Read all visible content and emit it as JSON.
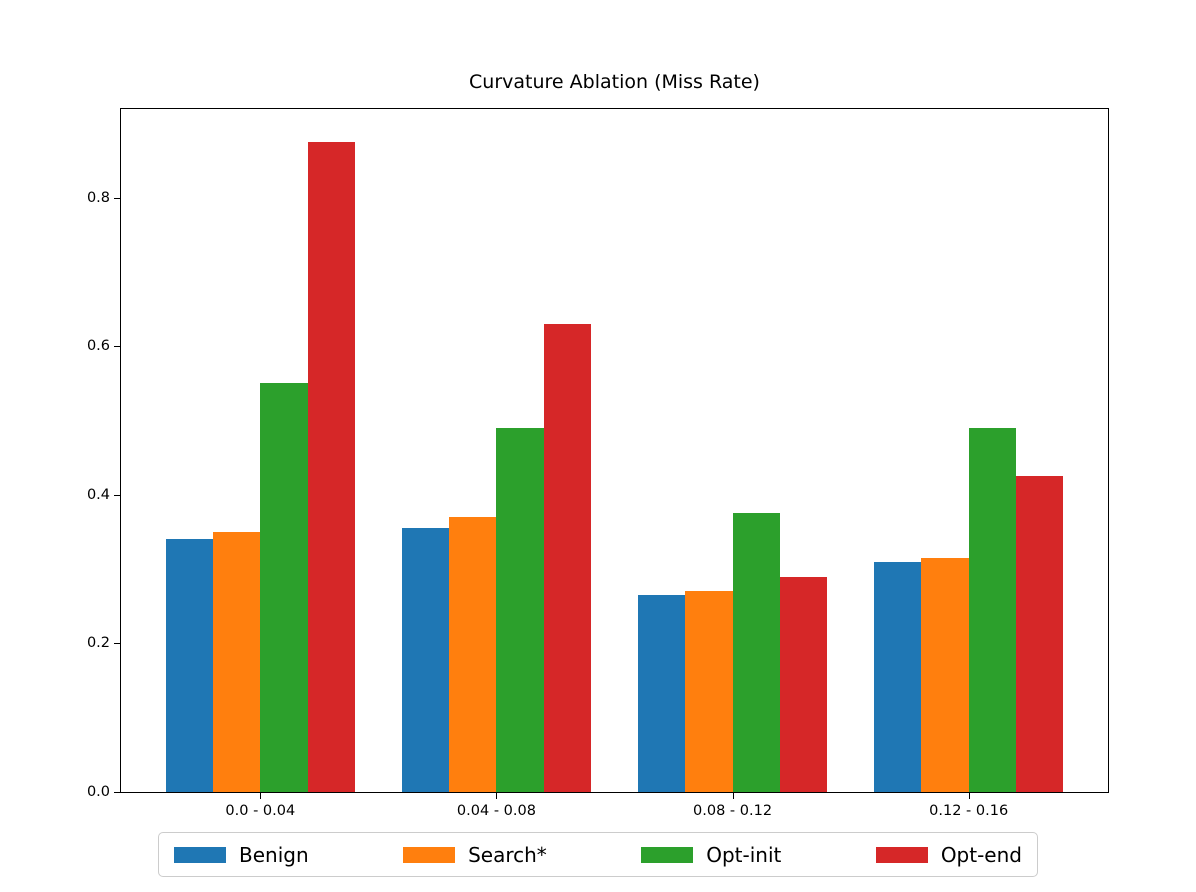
{
  "chart_data": {
    "type": "bar",
    "title": "Curvature Ablation (Miss Rate)",
    "categories": [
      "0.0 - 0.04",
      "0.04 - 0.08",
      "0.08 - 0.12",
      "0.12 - 0.16"
    ],
    "series": [
      {
        "name": "Benign",
        "color": "#1f77b4",
        "values": [
          0.34,
          0.355,
          0.265,
          0.31
        ]
      },
      {
        "name": "Search*",
        "color": "#ff7f0e",
        "values": [
          0.35,
          0.37,
          0.27,
          0.315
        ]
      },
      {
        "name": "Opt-init",
        "color": "#2ca02c",
        "values": [
          0.55,
          0.49,
          0.375,
          0.49
        ]
      },
      {
        "name": "Opt-end",
        "color": "#d62728",
        "values": [
          0.875,
          0.63,
          0.29,
          0.425
        ]
      }
    ],
    "xlabel": "",
    "ylabel": "",
    "xlim": [
      -0.59,
      3.59
    ],
    "ylim": [
      0,
      0.9195
    ],
    "yticks": [
      0.0,
      0.2,
      0.4,
      0.6,
      0.8
    ],
    "ytick_labels": [
      "0.0",
      "0.2",
      "0.4",
      "0.6",
      "0.8"
    ],
    "bar_group_width": 0.8,
    "grid": false,
    "legend_position": "bottom-outside",
    "background_color": "#ffffff"
  }
}
